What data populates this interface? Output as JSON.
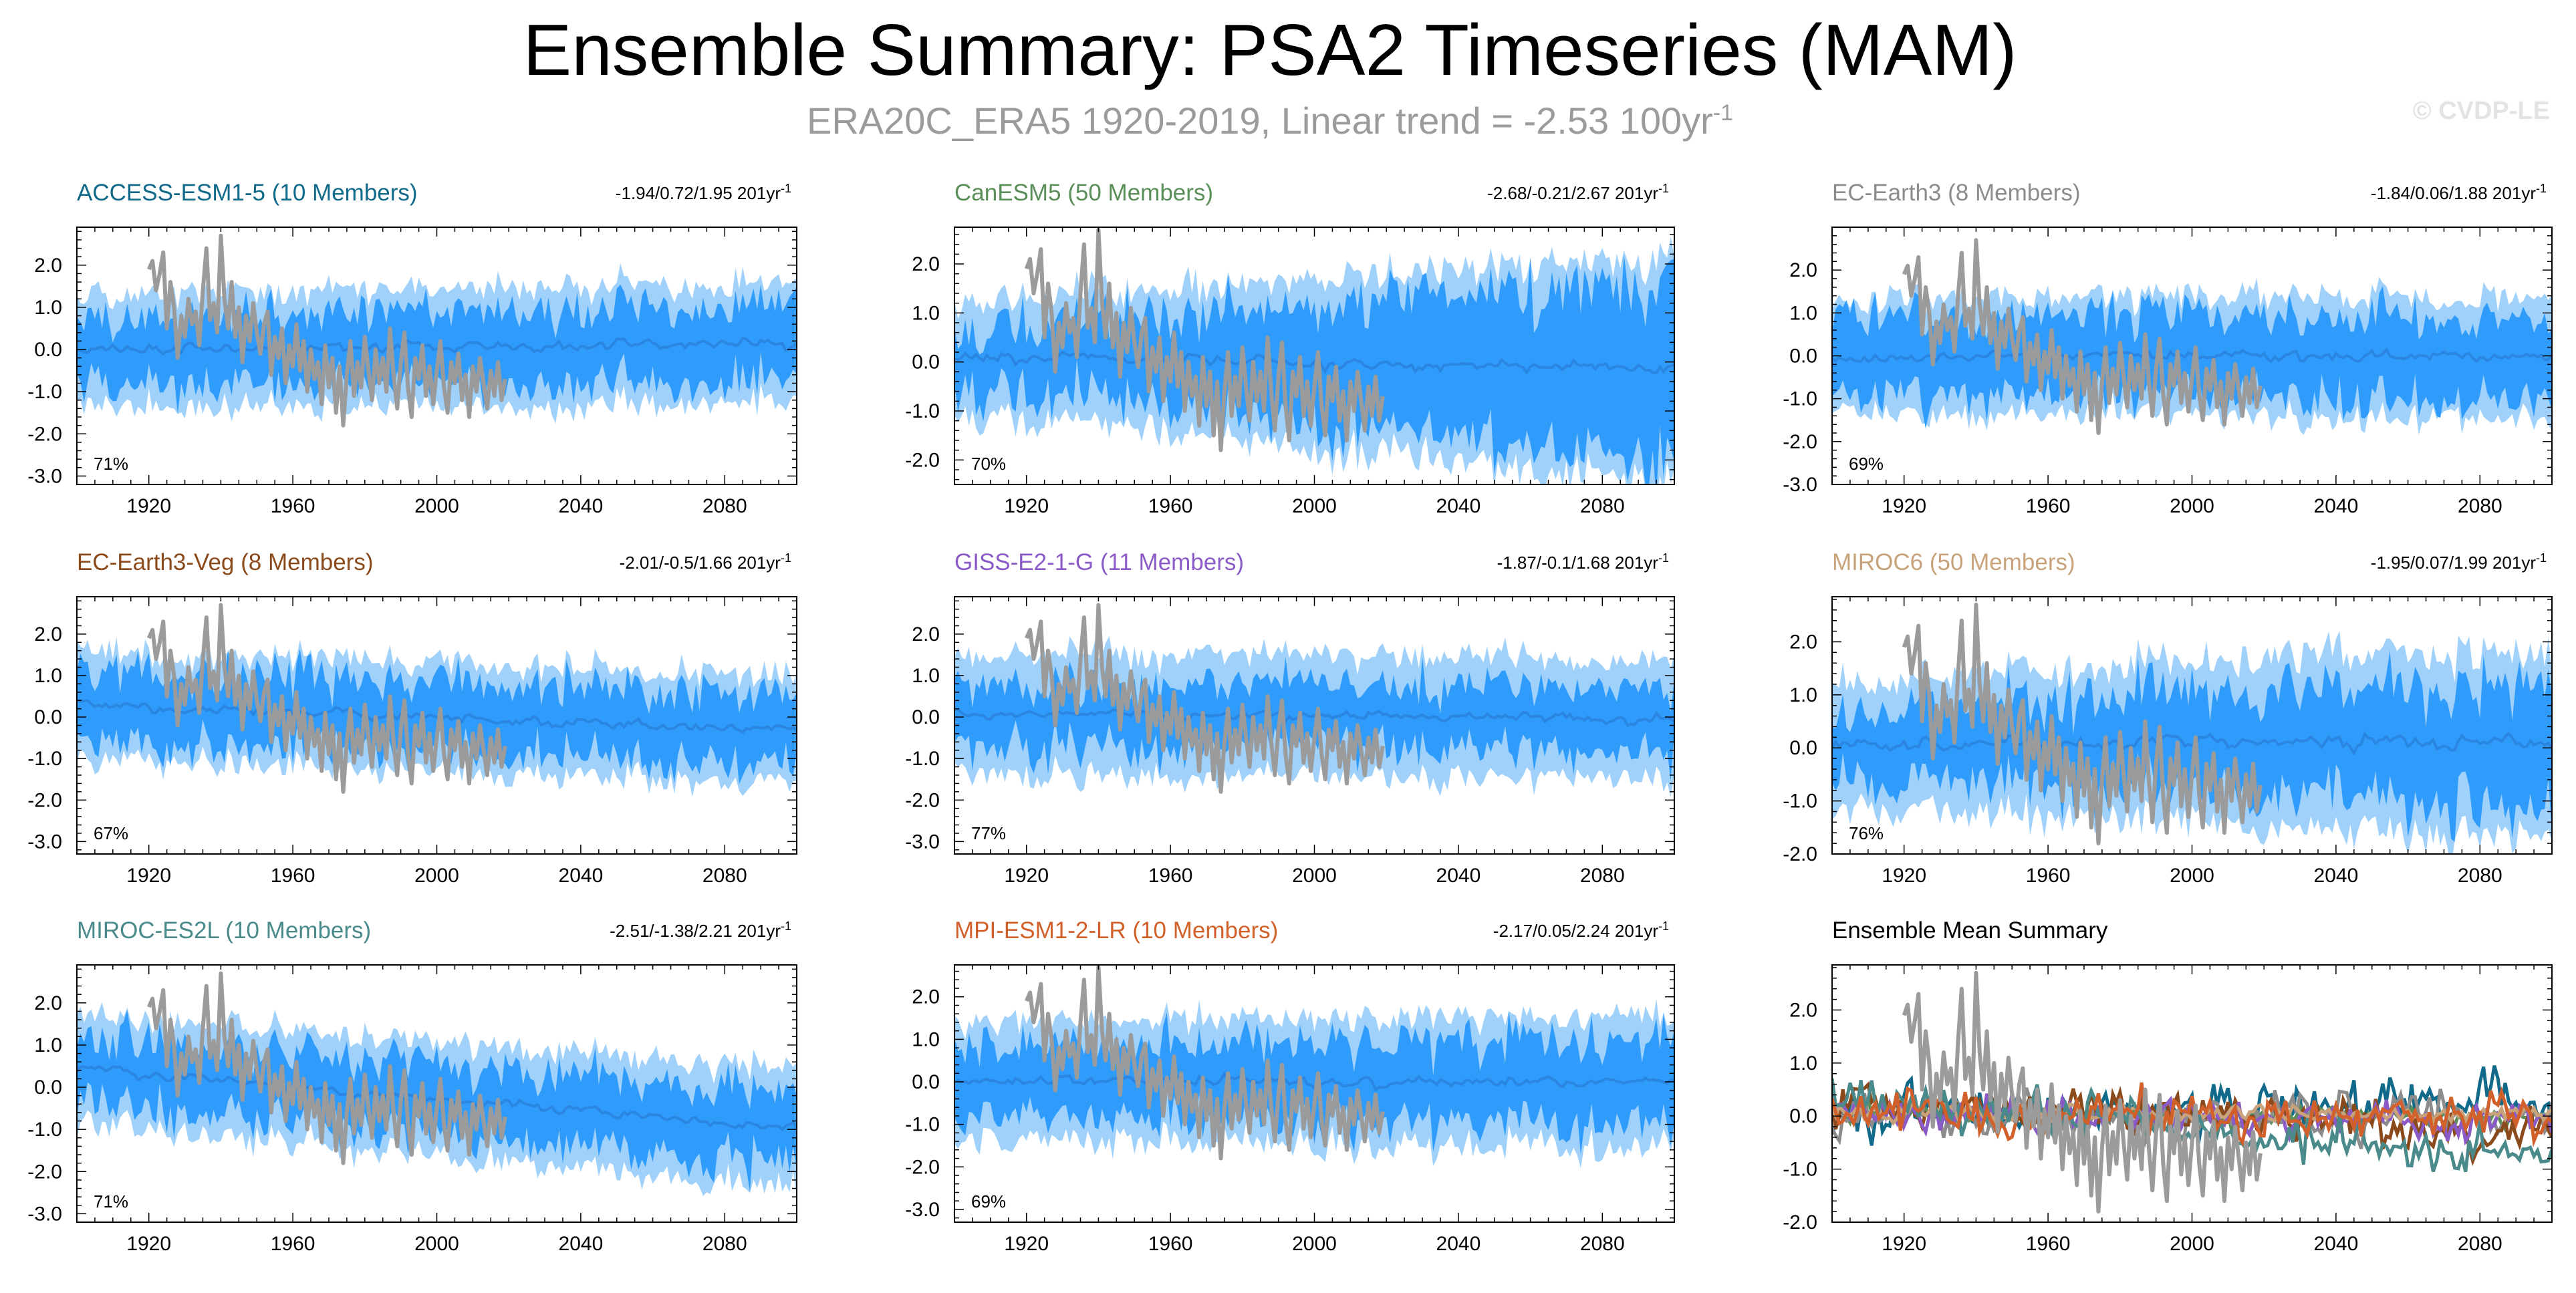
{
  "title": "Ensemble Summary: PSA2 Timeseries (MAM)",
  "subtitle": {
    "prefix": "ERA20C_ERA5 1920-2019, Linear trend = -2.53 100yr",
    "superscript": "-1"
  },
  "watermark": "© CVDP-LE",
  "colors": {
    "outer_band": "#9fd1fb",
    "inner_band": "#2f9cfc",
    "ensemble_mean_line": "#2a86e0",
    "observations": "#9b9b9b"
  },
  "chart_data": [
    {
      "type": "line",
      "name": "ACCESS-ESM1-5",
      "title": "ACCESS-ESM1-5 (10 Members)",
      "title_color": "#116a8a",
      "stats": "-1.94/0.72/1.95 201yr",
      "stats_superscript": "-1",
      "percent": "71%",
      "xlim": [
        1900,
        2100
      ],
      "ylim": [
        -3.2,
        2.9
      ],
      "xticks": [
        1920,
        1960,
        2000,
        2040,
        2080
      ],
      "xtick_labels": [
        "1920",
        "1960",
        "2000",
        "2040",
        "2080"
      ],
      "yticks": [
        2.0,
        1.0,
        0.0,
        -1.0,
        -2.0,
        -3.0
      ],
      "ytick_labels": [
        "2.0",
        "1.0",
        "0.0",
        "-1.0",
        "-2.0",
        "-3.0"
      ],
      "ensemble_mean_trend": [
        0.0,
        0.15
      ],
      "outer_spread": [
        1.3,
        1.45
      ],
      "inner_spread": [
        0.8,
        0.9
      ],
      "seed": 11
    },
    {
      "type": "line",
      "name": "CanESM5",
      "title": "CanESM5 (50 Members)",
      "title_color": "#5a8f5a",
      "stats": "-2.68/-0.21/2.67 201yr",
      "stats_superscript": "-1",
      "percent": "70%",
      "xlim": [
        1900,
        2100
      ],
      "ylim": [
        -2.5,
        2.75
      ],
      "xticks": [
        1920,
        1960,
        2000,
        2040,
        2080
      ],
      "xtick_labels": [
        "1920",
        "1960",
        "2000",
        "2040",
        "2080"
      ],
      "yticks": [
        2.0,
        1.0,
        0.0,
        -1.0,
        -2.0
      ],
      "ytick_labels": [
        "2.0",
        "1.0",
        "0.0",
        "-1.0",
        "-2.0"
      ],
      "ensemble_mean_trend": [
        0.1,
        -0.15
      ],
      "outer_spread": [
        1.15,
        2.3
      ],
      "inner_spread": [
        0.55,
        1.85
      ],
      "seed": 23
    },
    {
      "type": "line",
      "name": "EC-Earth3",
      "title": "EC-Earth3 (8 Members)",
      "title_color": "#8c8c8c",
      "stats": "-1.84/0.06/1.88 201yr",
      "stats_superscript": "-1",
      "percent": "69%",
      "xlim": [
        1900,
        2100
      ],
      "ylim": [
        -3.0,
        3.0
      ],
      "xticks": [
        1920,
        1960,
        2000,
        2040,
        2080
      ],
      "xtick_labels": [
        "1920",
        "1960",
        "2000",
        "2040",
        "2080"
      ],
      "yticks": [
        2.0,
        1.0,
        0.0,
        -1.0,
        -2.0,
        -3.0
      ],
      "ytick_labels": [
        "2.0",
        "1.0",
        "0.0",
        "-1.0",
        "-2.0",
        "-3.0"
      ],
      "ensemble_mean_trend": [
        0.0,
        0.0
      ],
      "outer_spread": [
        1.35,
        1.4
      ],
      "inner_spread": [
        0.9,
        0.95
      ],
      "seed": 37
    },
    {
      "type": "line",
      "name": "EC-Earth3-Veg",
      "title": "EC-Earth3-Veg (8 Members)",
      "title_color": "#8b4a1c",
      "stats": "-2.01/-0.5/1.66 201yr",
      "stats_superscript": "-1",
      "percent": "67%",
      "xlim": [
        1900,
        2100
      ],
      "ylim": [
        -3.3,
        2.9
      ],
      "xticks": [
        1920,
        1960,
        2000,
        2040,
        2080
      ],
      "xtick_labels": [
        "1920",
        "1960",
        "2000",
        "2040",
        "2080"
      ],
      "yticks": [
        2.0,
        1.0,
        0.0,
        -1.0,
        -2.0,
        -3.0
      ],
      "ytick_labels": [
        "2.0",
        "1.0",
        "0.0",
        "-1.0",
        "-2.0",
        "-3.0"
      ],
      "ensemble_mean_trend": [
        0.3,
        -0.3
      ],
      "outer_spread": [
        1.3,
        1.3
      ],
      "inner_spread": [
        0.85,
        0.85
      ],
      "seed": 41
    },
    {
      "type": "line",
      "name": "GISS-E2-1-G",
      "title": "GISS-E2-1-G (11 Members)",
      "title_color": "#8a5bc7",
      "stats": "-1.87/-0.1/1.68 201yr",
      "stats_superscript": "-1",
      "percent": "77%",
      "xlim": [
        1900,
        2100
      ],
      "ylim": [
        -3.3,
        2.9
      ],
      "xticks": [
        1920,
        1960,
        2000,
        2040,
        2080
      ],
      "xtick_labels": [
        "1920",
        "1960",
        "2000",
        "2040",
        "2080"
      ],
      "yticks": [
        2.0,
        1.0,
        0.0,
        -1.0,
        -2.0,
        -3.0
      ],
      "ytick_labels": [
        "2.0",
        "1.0",
        "0.0",
        "-1.0",
        "-2.0",
        "-3.0"
      ],
      "ensemble_mean_trend": [
        0.1,
        -0.05
      ],
      "outer_spread": [
        1.45,
        1.45
      ],
      "inner_spread": [
        0.75,
        0.75
      ],
      "seed": 53
    },
    {
      "type": "line",
      "name": "MIROC6",
      "title": "MIROC6 (50 Members)",
      "title_color": "#c8a27a",
      "stats": "-1.95/0.07/1.99 201yr",
      "stats_superscript": "-1",
      "percent": "76%",
      "xlim": [
        1900,
        2100
      ],
      "ylim": [
        -2.0,
        2.85
      ],
      "xticks": [
        1920,
        1960,
        2000,
        2040,
        2080
      ],
      "xtick_labels": [
        "1920",
        "1960",
        "2000",
        "2040",
        "2080"
      ],
      "yticks": [
        2.0,
        1.0,
        0.0,
        -1.0,
        -2.0
      ],
      "ytick_labels": [
        "2.0",
        "1.0",
        "0.0",
        "-1.0",
        "-2.0"
      ],
      "ensemble_mean_trend": [
        0.05,
        0.1
      ],
      "outer_spread": [
        1.2,
        1.8
      ],
      "inner_spread": [
        0.6,
        1.2
      ],
      "seed": 67
    },
    {
      "type": "line",
      "name": "MIROC-ES2L",
      "title": "MIROC-ES2L (10 Members)",
      "title_color": "#4a8a8a",
      "stats": "-2.51/-1.38/2.21 201yr",
      "stats_superscript": "-1",
      "percent": "71%",
      "xlim": [
        1900,
        2100
      ],
      "ylim": [
        -3.2,
        2.9
      ],
      "xticks": [
        1920,
        1960,
        2000,
        2040,
        2080
      ],
      "xtick_labels": [
        "1920",
        "1960",
        "2000",
        "2040",
        "2080"
      ],
      "yticks": [
        2.0,
        1.0,
        0.0,
        -1.0,
        -2.0,
        -3.0
      ],
      "ytick_labels": [
        "2.0",
        "1.0",
        "0.0",
        "-1.0",
        "-2.0",
        "-3.0"
      ],
      "ensemble_mean_trend": [
        0.45,
        -1.0
      ],
      "outer_spread": [
        1.3,
        1.4
      ],
      "inner_spread": [
        0.8,
        0.85
      ],
      "seed": 79
    },
    {
      "type": "line",
      "name": "MPI-ESM1-2-LR",
      "title": "MPI-ESM1-2-LR (10 Members)",
      "title_color": "#d2602a",
      "stats": "-2.17/0.05/2.24 201yr",
      "stats_superscript": "-1",
      "percent": "69%",
      "xlim": [
        1900,
        2100
      ],
      "ylim": [
        -3.3,
        2.75
      ],
      "xticks": [
        1920,
        1960,
        2000,
        2040,
        2080
      ],
      "xtick_labels": [
        "1920",
        "1960",
        "2000",
        "2040",
        "2080"
      ],
      "yticks": [
        2.0,
        1.0,
        0.0,
        -1.0,
        -2.0,
        -3.0
      ],
      "ytick_labels": [
        "2.0",
        "1.0",
        "0.0",
        "-1.0",
        "-2.0",
        "-3.0"
      ],
      "ensemble_mean_trend": [
        0.05,
        0.0
      ],
      "outer_spread": [
        1.4,
        1.55
      ],
      "inner_spread": [
        0.8,
        1.0
      ],
      "seed": 89
    },
    {
      "type": "line",
      "name": "Ensemble Mean Summary",
      "title": "Ensemble Mean Summary",
      "title_color": "#000000",
      "summary": true,
      "xlim": [
        1900,
        2100
      ],
      "ylim": [
        -2.0,
        2.85
      ],
      "xticks": [
        1920,
        1960,
        2000,
        2040,
        2080
      ],
      "xtick_labels": [
        "1920",
        "1960",
        "2000",
        "2040",
        "2080"
      ],
      "yticks": [
        2.0,
        1.0,
        0.0,
        -1.0,
        -2.0
      ],
      "ytick_labels": [
        "2.0",
        "1.0",
        "0.0",
        "-1.0",
        "-2.0"
      ],
      "series": [
        {
          "name": "ACCESS-ESM1-5",
          "color": "#116a8a",
          "trend": [
            0.0,
            0.3
          ],
          "amp": 0.35,
          "seed": 101
        },
        {
          "name": "CanESM5",
          "color": "#5a8f5a",
          "trend": [
            0.05,
            -0.05
          ],
          "amp": 0.12,
          "seed": 102
        },
        {
          "name": "EC-Earth3",
          "color": "#8c8c8c",
          "trend": [
            0.0,
            0.0
          ],
          "amp": 0.3,
          "seed": 103
        },
        {
          "name": "EC-Earth3-Veg",
          "color": "#8b4a1c",
          "trend": [
            0.3,
            -0.3
          ],
          "amp": 0.3,
          "seed": 104
        },
        {
          "name": "GISS-E2-1-G",
          "color": "#8a5bc7",
          "trend": [
            0.1,
            -0.1
          ],
          "amp": 0.25,
          "seed": 105
        },
        {
          "name": "MIROC6",
          "color": "#c8a27a",
          "trend": [
            0.05,
            0.05
          ],
          "amp": 0.12,
          "seed": 106
        },
        {
          "name": "MIROC-ES2L",
          "color": "#4a8a8a",
          "trend": [
            0.4,
            -0.9
          ],
          "amp": 0.3,
          "seed": 107
        },
        {
          "name": "MPI-ESM1-2-LR",
          "color": "#d2602a",
          "trend": [
            0.05,
            0.0
          ],
          "amp": 0.3,
          "seed": 108
        }
      ]
    }
  ],
  "observations": {
    "name": "ERA20C_ERA5",
    "years": [
      1920,
      2019
    ],
    "values": [
      1.9,
      2.1,
      1.4,
      1.8,
      2.3,
      0.5,
      1.6,
      1.0,
      -0.2,
      0.8,
      0.3,
      1.2,
      0.6,
      0.9,
      0.1,
      1.4,
      2.4,
      0.7,
      1.1,
      0.4,
      2.7,
      1.2,
      0.5,
      1.6,
      0.3,
      1.0,
      -0.3,
      0.8,
      0.2,
      1.1,
      0.4,
      -0.1,
      0.6,
      0.9,
      -0.6,
      0.3,
      -0.2,
      0.5,
      -0.8,
      0.1,
      -0.4,
      0.6,
      -0.5,
      0.2,
      -1.0,
      0.0,
      -0.7,
      -0.3,
      -1.3,
      0.1,
      -0.9,
      -0.2,
      -1.5,
      -0.4,
      -1.8,
      -0.6,
      0.2,
      -1.1,
      -0.3,
      -0.9,
      0.3,
      -0.5,
      -1.2,
      0.0,
      -0.8,
      -0.2,
      -1.0,
      0.5,
      -0.6,
      -1.4,
      -0.3,
      0.4,
      -0.9,
      -1.6,
      -0.2,
      -0.7,
      0.1,
      -1.1,
      -0.4,
      -1.3,
      -0.5,
      0.2,
      -0.9,
      -1.5,
      -0.3,
      -0.8,
      -0.1,
      -1.2,
      -0.6,
      -1.6,
      -0.4,
      -1.0,
      -0.2,
      -0.8,
      -1.4,
      -0.5,
      -1.1,
      -0.3,
      -1.2,
      -0.7
    ]
  }
}
